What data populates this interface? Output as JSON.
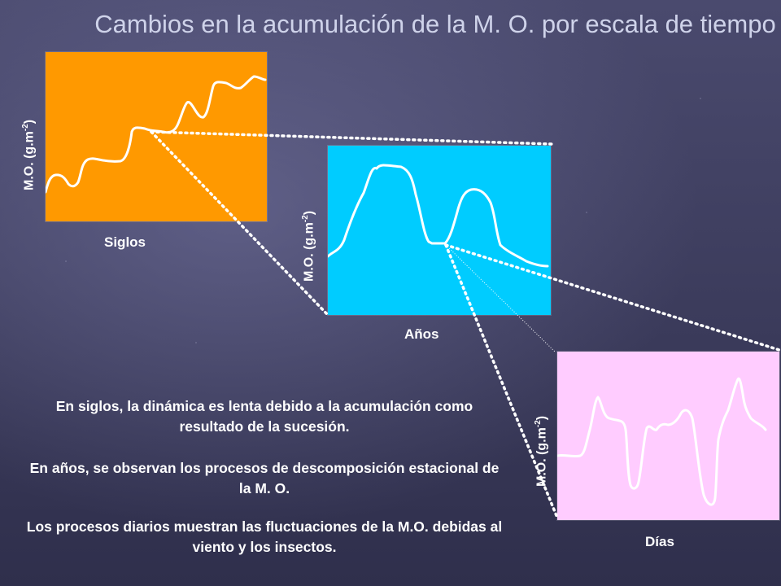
{
  "title": "Cambios en la acumulación de la M. O. por escala de tiempo",
  "panels": [
    {
      "id": "siglos",
      "x_label": "Siglos",
      "y_label": "M.O. (g.m",
      "y_label_sup": "-2",
      "y_label_end": ")",
      "color": "#ff9900"
    },
    {
      "id": "anos",
      "x_label": "Años",
      "y_label": "M.O. (g.m",
      "y_label_sup": "-2",
      "y_label_end": ")",
      "color": "#00ccff"
    },
    {
      "id": "dias",
      "x_label": "Días",
      "y_label": "M.O. (g.m",
      "y_label_sup": "-2",
      "y_label_end": ")",
      "color": "#ffccff"
    }
  ],
  "descriptions": [
    "En siglos, la dinámica es lenta debido a la acumulación como resultado de la sucesión.",
    "En años, se observan los procesos de descomposición estacional de la M. O.",
    "Los procesos diarios muestran las fluctuaciones de la M.O. debidas al viento y los insectos."
  ]
}
